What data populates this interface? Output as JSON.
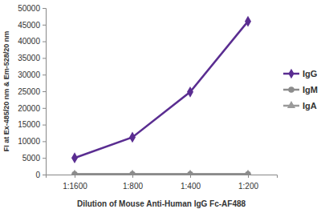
{
  "chart_data": {
    "type": "line",
    "x_label": "Dilution of Mouse Anti-Human IgG Fc-AF488",
    "y_label": "FI at Ex-485/20 nm & Em-528/20 nm",
    "categories": [
      "1:1600",
      "1:800",
      "1:400",
      "1:200"
    ],
    "series": [
      {
        "name": "IgG",
        "color": "#5a2d91",
        "marker": "diamond",
        "values": [
          5000,
          11200,
          24800,
          46000
        ]
      },
      {
        "name": "IgM",
        "color": "#8c8c8c",
        "marker": "circle",
        "values": [
          100,
          100,
          100,
          100
        ]
      },
      {
        "name": "IgA",
        "color": "#9a9a9a",
        "marker": "triangle",
        "values": [
          100,
          100,
          100,
          100
        ]
      }
    ],
    "ylim": [
      0,
      50000
    ],
    "yticks": [
      0,
      5000,
      10000,
      15000,
      20000,
      25000,
      30000,
      35000,
      40000,
      45000,
      50000
    ],
    "grid": false,
    "legend": "right"
  }
}
